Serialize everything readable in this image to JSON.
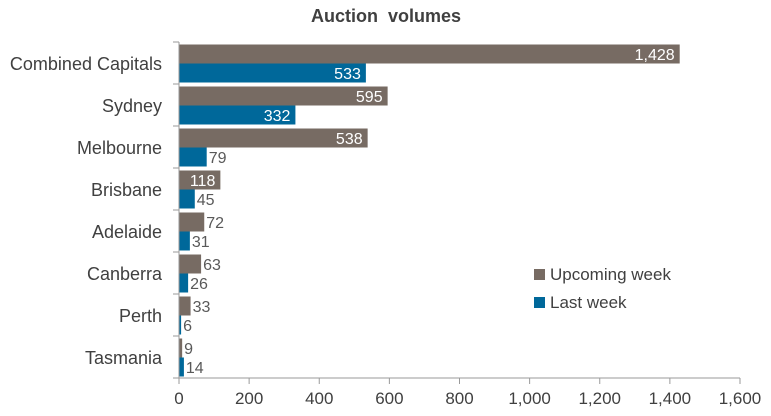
{
  "chart_data": {
    "type": "bar",
    "orientation": "horizontal",
    "title": "Auction  volumes",
    "categories": [
      "Combined Capitals",
      "Sydney",
      "Melbourne",
      "Brisbane",
      "Adelaide",
      "Canberra",
      "Perth",
      "Tasmania"
    ],
    "series": [
      {
        "name": "Upcoming week",
        "color": "#776b63",
        "values": [
          1428,
          595,
          538,
          118,
          72,
          63,
          33,
          9
        ]
      },
      {
        "name": "Last week",
        "color": "#00689a",
        "values": [
          533,
          332,
          79,
          45,
          31,
          26,
          6,
          14
        ]
      }
    ],
    "x_ticks": [
      "0",
      "200",
      "400",
      "600",
      "800",
      "1,000",
      "1,200",
      "1,400",
      "1,600"
    ],
    "xlim": [
      0,
      1600
    ],
    "grid": false,
    "legend_position": "right"
  }
}
